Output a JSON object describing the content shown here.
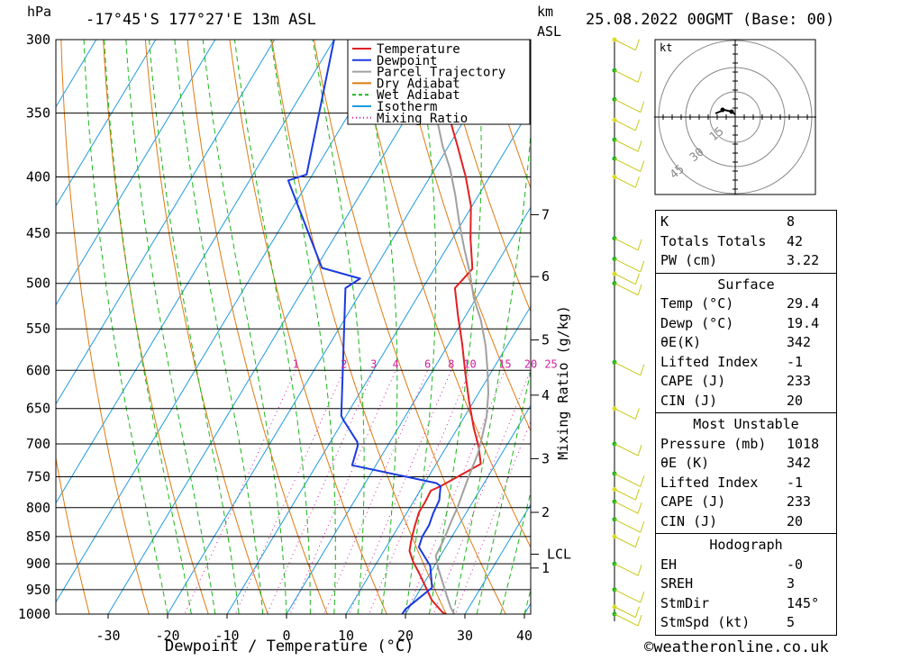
{
  "header": {
    "hpa": "hPa",
    "location": "-17°45'S  177°27'E  13m  ASL",
    "km": "km",
    "asl": "ASL",
    "datetime": "25.08.2022  00GMT  (Base: 00)"
  },
  "footer": {
    "credit": "©weatheronline.co.uk"
  },
  "chart_data": {
    "type": "line",
    "title": "",
    "xlabel": "Dewpoint / Temperature (°C)",
    "ylabel": "hPa",
    "xlim": [
      -40,
      40
    ],
    "ylim": [
      1000,
      300
    ],
    "y_scale": "log",
    "skew": "skew-T",
    "x_ticks": [
      "-30",
      "-20",
      "-10",
      "0",
      "10",
      "20",
      "30",
      "40"
    ],
    "pressure_levels": [
      300,
      350,
      400,
      450,
      500,
      550,
      600,
      650,
      700,
      750,
      800,
      850,
      900,
      950,
      1000
    ],
    "km_levels": [
      {
        "label": "7",
        "p": 433
      },
      {
        "label": "6",
        "p": 493
      },
      {
        "label": "5",
        "p": 563
      },
      {
        "label": "4",
        "p": 632
      },
      {
        "label": "3",
        "p": 722
      },
      {
        "label": "2",
        "p": 808
      },
      {
        "label": "LCL",
        "p": 882
      },
      {
        "label": "1",
        "p": 908
      }
    ],
    "mixing_ratio_label": "Mixing Ratio (g/kg)",
    "mixing_ratio_values": [
      "1",
      "2",
      "3",
      "4",
      "6",
      "8",
      "10",
      "15",
      "20",
      "25"
    ],
    "legend": [
      "Temperature",
      "Dewpoint",
      "Parcel Trajectory",
      "Dry Adiabat",
      "Wet Adiabat",
      "Isotherm",
      "Mixing Ratio"
    ],
    "legend_position": "top-right",
    "colors": {
      "temperature": "#e02020",
      "dewpoint": "#1a3ae0",
      "parcel": "#a0a0a0",
      "dry_adiabat": "#e07a10",
      "wet_adiabat": "#18b818",
      "isotherm": "#1f9ae0",
      "mixing_ratio": "#d020a0"
    },
    "series": [
      {
        "name": "Temperature",
        "points": [
          [
            29.4,
            1013
          ],
          [
            26,
            996
          ],
          [
            23,
            971
          ],
          [
            20.5,
            943
          ],
          [
            18,
            916
          ],
          [
            16,
            896
          ],
          [
            14.3,
            876
          ],
          [
            13.5,
            856
          ],
          [
            12.7,
            832
          ],
          [
            12,
            808
          ],
          [
            12,
            790
          ],
          [
            11.8,
            772
          ],
          [
            13,
            765
          ],
          [
            17.5,
            730
          ],
          [
            15.5,
            705
          ],
          [
            12.7,
            677
          ],
          [
            9.2,
            640
          ],
          [
            5.7,
            603
          ],
          [
            2.2,
            567
          ],
          [
            -1.3,
            535
          ],
          [
            -4.6,
            505
          ],
          [
            -3.6,
            485
          ],
          [
            -7,
            455
          ],
          [
            -10.2,
            425
          ],
          [
            -14,
            400
          ],
          [
            -18.5,
            375
          ],
          [
            -23,
            352
          ],
          [
            -27.5,
            328
          ],
          [
            -33,
            300
          ]
        ]
      },
      {
        "name": "Dewpoint",
        "points": [
          [
            19.4,
            1013
          ],
          [
            19.5,
            990
          ],
          [
            21.8,
            946
          ],
          [
            19.3,
            904
          ],
          [
            15.5,
            869
          ],
          [
            15,
            850
          ],
          [
            15,
            830
          ],
          [
            14.5,
            810
          ],
          [
            14.2,
            788
          ],
          [
            13,
            765
          ],
          [
            12,
            760
          ],
          [
            -4,
            732
          ],
          [
            -5,
            703
          ],
          [
            -5.5,
            697
          ],
          [
            -10,
            666
          ],
          [
            -10.8,
            660
          ],
          [
            -23,
            505
          ],
          [
            -21.5,
            495
          ],
          [
            -29,
            484
          ],
          [
            -43.5,
            403
          ],
          [
            -41,
            398
          ],
          [
            -50,
            300
          ]
        ]
      },
      {
        "name": "Parcel Trajectory",
        "points": [
          [
            29.4,
            1013
          ],
          [
            27,
            987
          ],
          [
            25,
            961
          ],
          [
            23,
            935
          ],
          [
            21,
            910
          ],
          [
            19.2,
            885
          ],
          [
            19,
            862
          ],
          [
            18.7,
            842
          ],
          [
            18.3,
            821
          ],
          [
            18,
            800
          ],
          [
            17.5,
            780
          ],
          [
            17,
            760
          ],
          [
            16.5,
            738
          ],
          [
            16,
            715
          ],
          [
            15,
            690
          ],
          [
            13.7,
            661
          ],
          [
            11.6,
            629
          ],
          [
            9.2,
            600
          ],
          [
            6.4,
            570
          ],
          [
            3,
            540
          ],
          [
            -0.5,
            515
          ],
          [
            -3.5,
            490
          ],
          [
            -7,
            465
          ],
          [
            -10.5,
            440
          ],
          [
            -14,
            415
          ],
          [
            -17.5,
            393
          ],
          [
            -21,
            375
          ],
          [
            -25.5,
            350
          ],
          [
            -31,
            322
          ],
          [
            -35.5,
            300
          ]
        ]
      }
    ],
    "hodograph": {
      "unit": "kt",
      "rings": [
        "15",
        "30",
        "45"
      ]
    }
  },
  "indices": {
    "K": "8",
    "Totals Totals": "42",
    "PW (cm)": "3.22"
  },
  "surface": {
    "title": "Surface",
    "rows": [
      {
        "k": "Temp (°C)",
        "v": "29.4"
      },
      {
        "k": "Dewp (°C)",
        "v": "19.4"
      },
      {
        "k": "θE(K)",
        "v": "342"
      },
      {
        "k": "Lifted Index",
        "v": "-1"
      },
      {
        "k": "CAPE (J)",
        "v": "233"
      },
      {
        "k": "CIN (J)",
        "v": "20"
      }
    ]
  },
  "most_unstable": {
    "title": "Most Unstable",
    "rows": [
      {
        "k": "Pressure (mb)",
        "v": "1018"
      },
      {
        "k": "θE (K)",
        "v": "342"
      },
      {
        "k": "Lifted Index",
        "v": "-1"
      },
      {
        "k": "CAPE (J)",
        "v": "233"
      },
      {
        "k": "CIN (J)",
        "v": "20"
      }
    ]
  },
  "hodograph_table": {
    "title": "Hodograph",
    "rows": [
      {
        "k": "EH",
        "v": "-0"
      },
      {
        "k": "SREH",
        "v": "3"
      },
      {
        "k": "StmDir",
        "v": "145°"
      },
      {
        "k": "StmSpd (kt)",
        "v": "5"
      }
    ]
  }
}
